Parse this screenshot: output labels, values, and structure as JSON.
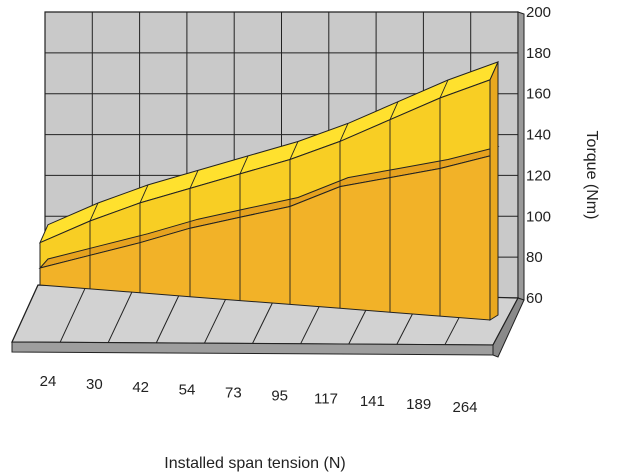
{
  "chart_data": {
    "type": "area",
    "categories": [
      "24",
      "30",
      "42",
      "54",
      "73",
      "95",
      "117",
      "141",
      "189",
      "264"
    ],
    "series": [
      {
        "values": [
          86,
          93,
          100,
          108,
          114,
          120,
          131,
          136,
          141,
          148
        ]
      },
      {
        "values": [
          100,
          112,
          122,
          130,
          138,
          146,
          156,
          168,
          180,
          190
        ]
      }
    ],
    "xlabel": "Installed span tension (N)",
    "ylabel": "Torque (Nm)",
    "yticks": [
      60,
      80,
      100,
      120,
      140,
      160,
      180,
      200
    ],
    "ylim": [
      60,
      200
    ],
    "grid": true,
    "colors": {
      "wall": "#c9c9c9",
      "grid": "#222222",
      "lower_front": "#f2b228",
      "lower_top": "#e6a21f",
      "upper_front": "#f8ce24",
      "upper_top": "#ffe12e",
      "floor": "#d2d2d2"
    }
  }
}
